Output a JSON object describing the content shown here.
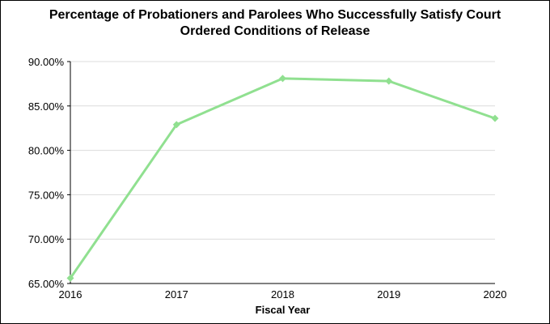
{
  "chart_data": {
    "type": "line",
    "title_lines": [
      "Percentage of Probationers and Parolees Who Successfully Satisfy Court",
      "Ordered Conditions of Release"
    ],
    "xlabel": "Fiscal Year",
    "ylabel": "",
    "categories": [
      "2016",
      "2017",
      "2018",
      "2019",
      "2020"
    ],
    "series": [
      {
        "values": [
          65.6,
          82.9,
          88.1,
          87.8,
          83.6
        ],
        "color": "#90e090"
      }
    ],
    "ylim": [
      65,
      90
    ],
    "yticks": [
      90,
      85,
      80,
      75,
      70,
      65
    ],
    "ytick_labels": [
      "90.00%",
      "85.00%",
      "80.00%",
      "75.00%",
      "70.00%",
      "65.00%"
    ],
    "grid": true,
    "legend": "none"
  }
}
